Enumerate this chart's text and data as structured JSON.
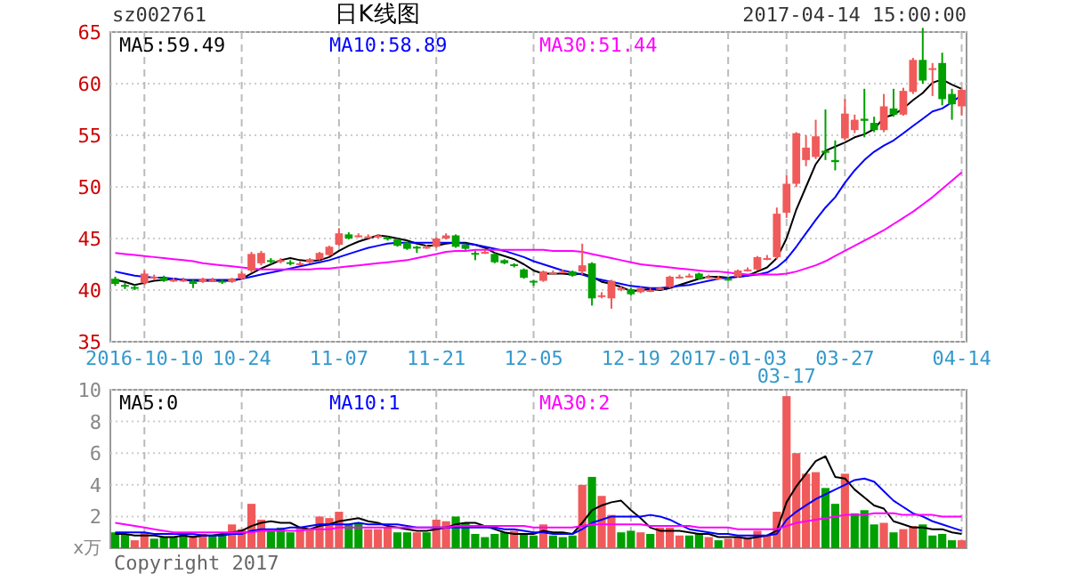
{
  "chart_data": [
    {
      "type": "candlestick",
      "title": "日K线图",
      "annotations": [
        "sz002761",
        "2017-04-14 15:00:00"
      ],
      "categories": [
        null,
        null,
        null,
        "2016-10-10",
        null,
        null,
        null,
        null,
        null,
        null,
        null,
        null,
        null,
        "10-24",
        null,
        null,
        null,
        null,
        null,
        null,
        null,
        null,
        null,
        "11-07",
        null,
        null,
        null,
        null,
        null,
        null,
        null,
        null,
        null,
        "11-21",
        null,
        null,
        null,
        null,
        null,
        null,
        null,
        null,
        null,
        "12-05",
        null,
        null,
        null,
        null,
        null,
        null,
        null,
        null,
        null,
        "12-19",
        null,
        null,
        null,
        null,
        null,
        null,
        null,
        null,
        null,
        "2017-01-03",
        null,
        null,
        null,
        null,
        null,
        "03-17",
        null,
        null,
        null,
        null,
        null,
        "03-27",
        null,
        null,
        null,
        null,
        null,
        null,
        null,
        null,
        null,
        null,
        null,
        "04-14"
      ],
      "ohlc": [
        [
          41.1,
          41.3,
          40.4,
          40.6
        ],
        [
          40.5,
          40.7,
          40.1,
          40.4
        ],
        [
          40.3,
          40.5,
          40.0,
          40.2
        ],
        [
          40.7,
          41.9,
          40.5,
          41.6
        ],
        [
          41.2,
          41.5,
          41.0,
          41.3
        ],
        [
          41.2,
          41.4,
          40.8,
          40.9
        ],
        [
          40.9,
          41.2,
          40.8,
          41.0
        ],
        [
          41.0,
          41.2,
          40.8,
          41.0
        ],
        [
          40.9,
          41.0,
          40.2,
          40.6
        ],
        [
          40.8,
          41.2,
          40.7,
          41.1
        ],
        [
          41.0,
          41.2,
          40.8,
          41.0
        ],
        [
          40.9,
          41.0,
          40.6,
          40.8
        ],
        [
          40.8,
          41.2,
          40.7,
          41.1
        ],
        [
          41.1,
          41.8,
          41.0,
          41.6
        ],
        [
          41.9,
          43.7,
          41.7,
          43.5
        ],
        [
          42.6,
          43.8,
          42.4,
          43.6
        ],
        [
          42.9,
          43.1,
          42.5,
          42.8
        ],
        [
          42.8,
          43.1,
          42.6,
          42.9
        ],
        [
          42.7,
          42.9,
          42.4,
          42.6
        ],
        [
          42.6,
          42.8,
          42.4,
          42.6
        ],
        [
          42.7,
          43.1,
          42.6,
          43.0
        ],
        [
          43.0,
          43.7,
          42.9,
          43.6
        ],
        [
          43.4,
          44.3,
          43.3,
          44.2
        ],
        [
          44.4,
          46.0,
          44.3,
          45.5
        ],
        [
          45.4,
          45.6,
          44.9,
          45.0
        ],
        [
          45.3,
          45.5,
          45.1,
          45.3
        ],
        [
          45.2,
          45.4,
          45.0,
          45.2
        ],
        [
          45.1,
          45.4,
          45.0,
          45.3
        ],
        [
          45.1,
          45.2,
          44.8,
          45.0
        ],
        [
          44.9,
          45.0,
          44.2,
          44.3
        ],
        [
          44.6,
          44.7,
          43.9,
          44.0
        ],
        [
          44.2,
          44.3,
          43.6,
          44.1
        ],
        [
          44.2,
          44.4,
          44.0,
          44.2
        ],
        [
          44.2,
          45.1,
          44.1,
          45.0
        ],
        [
          45.0,
          45.5,
          44.9,
          45.3
        ],
        [
          45.3,
          45.4,
          44.1,
          44.2
        ],
        [
          44.4,
          44.5,
          43.9,
          44.0
        ],
        [
          43.6,
          43.8,
          42.9,
          43.5
        ],
        [
          43.7,
          43.9,
          43.5,
          43.7
        ],
        [
          43.5,
          43.6,
          42.6,
          42.7
        ],
        [
          42.9,
          43.0,
          42.5,
          42.6
        ],
        [
          42.5,
          42.6,
          42.2,
          42.4
        ],
        [
          42.0,
          42.1,
          41.1,
          41.2
        ],
        [
          40.9,
          41.0,
          40.4,
          40.8
        ],
        [
          40.9,
          41.9,
          40.8,
          41.8
        ],
        [
          41.7,
          41.9,
          41.6,
          41.7
        ],
        [
          41.8,
          42.0,
          41.7,
          41.8
        ],
        [
          41.8,
          41.9,
          41.3,
          41.4
        ],
        [
          41.8,
          44.5,
          41.5,
          42.4
        ],
        [
          42.6,
          42.7,
          38.5,
          39.2
        ],
        [
          39.5,
          39.8,
          39.2,
          39.5
        ],
        [
          39.2,
          41.0,
          38.2,
          40.9
        ],
        [
          40.2,
          40.4,
          39.9,
          40.2
        ],
        [
          40.1,
          40.2,
          39.5,
          39.6
        ],
        [
          39.8,
          40.3,
          39.7,
          40.2
        ],
        [
          40.0,
          40.2,
          39.8,
          40.0
        ],
        [
          40.1,
          40.3,
          40.0,
          40.2
        ],
        [
          40.3,
          41.4,
          40.2,
          41.3
        ],
        [
          41.3,
          41.5,
          41.1,
          41.3
        ],
        [
          41.4,
          41.6,
          41.2,
          41.4
        ],
        [
          41.6,
          41.7,
          41.0,
          41.1
        ],
        [
          41.3,
          41.5,
          41.1,
          41.3
        ],
        [
          41.2,
          41.4,
          41.0,
          41.2
        ],
        [
          41.1,
          41.3,
          40.9,
          41.0
        ],
        [
          41.3,
          42.0,
          41.2,
          41.9
        ],
        [
          41.9,
          42.2,
          41.8,
          42.0
        ],
        [
          42.0,
          43.3,
          41.9,
          43.2
        ],
        [
          43.0,
          43.4,
          42.9,
          43.1
        ],
        [
          43.2,
          48.0,
          43.0,
          47.4
        ],
        [
          47.5,
          51.1,
          47.0,
          50.3
        ],
        [
          50.3,
          55.3,
          50.0,
          55.2
        ],
        [
          52.6,
          55.0,
          52.0,
          53.8
        ],
        [
          52.9,
          56.5,
          52.7,
          54.9
        ],
        [
          53.5,
          57.5,
          52.6,
          53.3
        ],
        [
          52.6,
          54.5,
          51.6,
          52.4
        ],
        [
          54.7,
          58.5,
          54.5,
          57.1
        ],
        [
          55.5,
          57.0,
          55.2,
          56.5
        ],
        [
          56.6,
          59.5,
          54.8,
          56.4
        ],
        [
          56.2,
          56.8,
          55.3,
          55.5
        ],
        [
          55.5,
          59.0,
          55.3,
          57.8
        ],
        [
          57.6,
          59.5,
          56.8,
          57.0
        ],
        [
          57.0,
          59.6,
          56.9,
          59.3
        ],
        [
          59.2,
          62.5,
          59.0,
          62.3
        ],
        [
          62.3,
          65.4,
          60.0,
          60.3
        ],
        [
          61.4,
          62.0,
          58.8,
          61.5
        ],
        [
          62.0,
          63.0,
          57.9,
          58.5
        ],
        [
          59.0,
          59.5,
          56.5,
          58.0
        ],
        [
          57.8,
          59.6,
          56.9,
          59.4
        ]
      ],
      "series": [
        {
          "type": "line",
          "name": "MA5:59.49",
          "color": "#000000",
          "values": [
            41.0,
            40.8,
            40.5,
            40.7,
            40.9,
            41.0,
            41.1,
            41.0,
            40.9,
            40.9,
            40.9,
            40.9,
            40.9,
            41.1,
            41.6,
            42.1,
            42.5,
            42.9,
            43.1,
            42.9,
            42.8,
            42.9,
            43.2,
            43.8,
            44.3,
            44.7,
            45.0,
            45.3,
            45.2,
            45.0,
            44.8,
            44.5,
            44.3,
            44.3,
            44.5,
            44.6,
            44.6,
            44.4,
            44.1,
            43.6,
            43.3,
            43.0,
            42.5,
            41.9,
            41.6,
            41.6,
            41.6,
            41.5,
            41.6,
            41.3,
            40.8,
            40.6,
            40.3,
            39.9,
            40.0,
            40.1,
            40.0,
            40.2,
            40.5,
            40.8,
            41.1,
            41.3,
            41.3,
            41.2,
            41.3,
            41.4,
            41.8,
            42.2,
            43.1,
            45.0,
            47.8,
            50.0,
            52.2,
            53.5,
            53.9,
            54.3,
            54.8,
            55.1,
            55.6,
            56.7,
            57.0,
            57.6,
            58.4,
            59.1,
            60.1,
            60.4,
            59.9,
            59.5
          ]
        },
        {
          "type": "line",
          "name": "MA10:58.89",
          "color": "#0000ff",
          "values": [
            41.8,
            41.6,
            41.4,
            41.3,
            41.2,
            41.2,
            41.1,
            41.0,
            41.0,
            41.0,
            41.0,
            41.0,
            41.0,
            41.1,
            41.3,
            41.5,
            41.7,
            41.9,
            42.1,
            42.3,
            42.5,
            42.7,
            42.9,
            43.2,
            43.5,
            43.8,
            44.1,
            44.3,
            44.5,
            44.6,
            44.6,
            44.6,
            44.6,
            44.6,
            44.6,
            44.6,
            44.5,
            44.4,
            44.2,
            44.0,
            43.8,
            43.5,
            43.2,
            42.8,
            42.5,
            42.2,
            41.9,
            41.7,
            41.5,
            41.2,
            41.0,
            40.8,
            40.6,
            40.4,
            40.3,
            40.2,
            40.2,
            40.3,
            40.4,
            40.5,
            40.7,
            40.9,
            41.1,
            41.2,
            41.3,
            41.4,
            41.5,
            41.7,
            42.2,
            43.0,
            44.2,
            45.5,
            46.8,
            48.0,
            49.0,
            50.4,
            51.6,
            52.6,
            53.4,
            54.0,
            54.5,
            55.2,
            55.9,
            56.6,
            57.3,
            57.6,
            58.2,
            58.9
          ]
        },
        {
          "type": "line",
          "name": "MA30:51.44",
          "color": "#ff00ff",
          "values": [
            43.6,
            43.5,
            43.4,
            43.3,
            43.2,
            43.1,
            43.0,
            42.9,
            42.8,
            42.6,
            42.5,
            42.4,
            42.3,
            42.2,
            42.1,
            42.0,
            42.0,
            42.0,
            42.0,
            42.0,
            42.0,
            42.1,
            42.1,
            42.2,
            42.3,
            42.4,
            42.5,
            42.6,
            42.7,
            42.8,
            42.9,
            43.1,
            43.3,
            43.5,
            43.7,
            43.8,
            43.8,
            43.9,
            43.9,
            43.9,
            43.9,
            43.9,
            43.9,
            43.9,
            43.9,
            43.8,
            43.8,
            43.8,
            43.7,
            43.5,
            43.3,
            43.1,
            42.9,
            42.7,
            42.5,
            42.4,
            42.3,
            42.2,
            42.1,
            42.0,
            41.9,
            41.8,
            41.8,
            41.7,
            41.6,
            41.5,
            41.5,
            41.5,
            41.5,
            41.6,
            41.8,
            42.1,
            42.4,
            42.8,
            43.3,
            43.8,
            44.3,
            44.8,
            45.3,
            45.8,
            46.4,
            47.0,
            47.6,
            48.3,
            49.0,
            49.8,
            50.6,
            51.4
          ]
        }
      ],
      "ylim": [
        35,
        65
      ],
      "yticks": [
        35,
        40,
        45,
        50,
        55,
        60,
        65
      ],
      "grid": true,
      "legend": "top left"
    },
    {
      "type": "bar",
      "ylabel": "x万",
      "annotations": [
        "Copyright 2017"
      ],
      "categories": [
        null,
        null,
        null,
        null,
        null,
        null,
        null,
        null,
        null,
        null,
        null,
        null,
        null,
        null,
        null,
        null,
        null,
        null,
        null,
        null,
        null,
        null,
        null,
        null,
        null,
        null,
        null,
        null,
        null,
        null,
        null,
        null,
        null,
        null,
        null,
        null,
        null,
        null,
        null,
        null,
        null,
        null,
        null,
        null,
        null,
        null,
        null,
        null,
        null,
        null,
        null,
        null,
        null,
        null,
        null,
        null,
        null,
        null,
        null,
        null,
        null,
        null,
        null,
        null,
        null,
        null,
        null,
        null,
        null,
        null,
        null,
        null,
        null,
        null,
        null,
        null,
        null,
        null,
        null,
        null,
        null,
        null,
        null,
        null,
        null,
        null,
        null,
        null
      ],
      "series": [
        {
          "type": "bar",
          "values": [
            1.0,
            0.9,
            0.5,
            1.0,
            0.6,
            0.7,
            0.7,
            0.9,
            0.8,
            0.9,
            0.8,
            0.9,
            1.5,
            1.2,
            2.8,
            1.8,
            1.1,
            1.3,
            1.0,
            1.3,
            1.2,
            2.0,
            1.9,
            2.3,
            1.5,
            1.6,
            1.2,
            1.2,
            1.3,
            1.0,
            1.0,
            1.0,
            1.0,
            1.8,
            1.7,
            2.0,
            1.6,
            0.9,
            0.7,
            0.9,
            1.0,
            1.1,
            0.9,
            0.8,
            1.5,
            0.8,
            0.7,
            0.8,
            4.0,
            4.5,
            3.3,
            2.1,
            1.0,
            1.1,
            1.0,
            0.9,
            1.3,
            1.3,
            0.8,
            0.8,
            0.9,
            0.7,
            0.5,
            0.6,
            0.7,
            0.7,
            1.1,
            0.8,
            2.3,
            9.6,
            6.0,
            4.7,
            4.8,
            3.8,
            2.8,
            4.7,
            2.2,
            2.4,
            1.5,
            1.6,
            1.0,
            1.2,
            1.4,
            1.5,
            0.8,
            0.9,
            0.5,
            0.5
          ],
          "colors": [
            "#00a000",
            "#00a000",
            "#f05a5a",
            "#f05a5a",
            "#00a000",
            "#00a000",
            "#00a000",
            "#00a000",
            "#f05a5a",
            "#f05a5a",
            "#00a000",
            "#00a000",
            "#f05a5a",
            "#f05a5a",
            "#f05a5a",
            "#f05a5a",
            "#00a000",
            "#00a000",
            "#00a000",
            "#f05a5a",
            "#f05a5a",
            "#f05a5a",
            "#f05a5a",
            "#f05a5a",
            "#00a000",
            "#00a000",
            "#f05a5a",
            "#f05a5a",
            "#f05a5a",
            "#00a000",
            "#00a000",
            "#f05a5a",
            "#00a000",
            "#f05a5a",
            "#f05a5a",
            "#00a000",
            "#00a000",
            "#00a000",
            "#00a000",
            "#00a000",
            "#00a000",
            "#f05a5a",
            "#00a000",
            "#00a000",
            "#f05a5a",
            "#00a000",
            "#00a000",
            "#00a000",
            "#f05a5a",
            "#00a000",
            "#f05a5a",
            "#f05a5a",
            "#00a000",
            "#00a000",
            "#f05a5a",
            "#00a000",
            "#f05a5a",
            "#f05a5a",
            "#f05a5a",
            "#00a000",
            "#00a000",
            "#f05a5a",
            "#00a000",
            "#f05a5a",
            "#f05a5a",
            "#f05a5a",
            "#f05a5a",
            "#f05a5a",
            "#f05a5a",
            "#f05a5a",
            "#f05a5a",
            "#f05a5a",
            "#f05a5a",
            "#00a000",
            "#00a000",
            "#f05a5a",
            "#00a000",
            "#00a000",
            "#00a000",
            "#f05a5a",
            "#00a000",
            "#f05a5a",
            "#f05a5a",
            "#00a000",
            "#00a000",
            "#00a000",
            "#00a000",
            "#f05a5a"
          ]
        },
        {
          "type": "line",
          "name": "MA5:0",
          "color": "#000000",
          "values": [
            0.9,
            0.9,
            0.8,
            0.8,
            0.8,
            0.7,
            0.7,
            0.8,
            0.7,
            0.8,
            0.8,
            0.9,
            1.0,
            1.1,
            1.4,
            1.6,
            1.7,
            1.6,
            1.6,
            1.3,
            1.2,
            1.4,
            1.5,
            1.7,
            1.8,
            1.9,
            1.7,
            1.6,
            1.4,
            1.3,
            1.2,
            1.1,
            1.1,
            1.2,
            1.3,
            1.5,
            1.6,
            1.6,
            1.4,
            1.2,
            1.0,
            0.9,
            0.9,
            0.9,
            1.1,
            1.0,
            1.0,
            0.9,
            1.6,
            2.4,
            2.7,
            2.9,
            3.0,
            2.4,
            1.9,
            1.3,
            1.1,
            1.1,
            1.1,
            1.0,
            0.9,
            0.9,
            0.7,
            0.7,
            0.7,
            0.6,
            0.7,
            0.8,
            1.1,
            2.9,
            3.9,
            4.7,
            5.5,
            5.8,
            4.5,
            4.4,
            3.7,
            3.2,
            2.7,
            2.5,
            1.7,
            1.5,
            1.3,
            1.3,
            1.2,
            1.2,
            1.0,
            0.9
          ]
        },
        {
          "type": "line",
          "name": "MA10:1",
          "color": "#0000ff",
          "values": [
            1.0,
            1.0,
            1.0,
            1.0,
            0.9,
            0.9,
            0.9,
            0.9,
            0.9,
            0.8,
            0.8,
            0.8,
            0.9,
            0.9,
            1.1,
            1.2,
            1.2,
            1.2,
            1.3,
            1.3,
            1.4,
            1.5,
            1.5,
            1.5,
            1.5,
            1.6,
            1.5,
            1.5,
            1.5,
            1.5,
            1.4,
            1.3,
            1.3,
            1.3,
            1.3,
            1.3,
            1.3,
            1.3,
            1.3,
            1.3,
            1.2,
            1.2,
            1.1,
            1.0,
            1.0,
            0.9,
            0.9,
            0.9,
            1.2,
            1.6,
            1.8,
            2.0,
            2.0,
            2.0,
            2.0,
            2.1,
            2.0,
            1.8,
            1.5,
            1.2,
            1.1,
            1.0,
            0.9,
            0.9,
            0.8,
            0.8,
            0.8,
            0.8,
            0.9,
            1.8,
            2.3,
            2.7,
            3.1,
            3.4,
            3.7,
            4.0,
            4.3,
            4.4,
            4.2,
            3.6,
            3.0,
            2.6,
            2.2,
            2.0,
            1.7,
            1.5,
            1.3,
            1.1
          ]
        },
        {
          "type": "line",
          "name": "MA30:2",
          "color": "#ff00ff",
          "values": [
            1.6,
            1.5,
            1.4,
            1.3,
            1.2,
            1.1,
            1.0,
            1.0,
            1.0,
            1.0,
            1.0,
            1.0,
            1.0,
            1.0,
            1.0,
            1.1,
            1.1,
            1.1,
            1.1,
            1.1,
            1.2,
            1.2,
            1.2,
            1.3,
            1.3,
            1.3,
            1.3,
            1.3,
            1.3,
            1.3,
            1.3,
            1.3,
            1.3,
            1.3,
            1.3,
            1.4,
            1.4,
            1.4,
            1.4,
            1.4,
            1.4,
            1.4,
            1.4,
            1.3,
            1.3,
            1.3,
            1.3,
            1.3,
            1.4,
            1.5,
            1.5,
            1.5,
            1.5,
            1.5,
            1.5,
            1.4,
            1.4,
            1.4,
            1.4,
            1.4,
            1.3,
            1.3,
            1.3,
            1.3,
            1.2,
            1.2,
            1.2,
            1.2,
            1.2,
            1.4,
            1.6,
            1.7,
            1.8,
            1.9,
            2.0,
            2.1,
            2.1,
            2.1,
            2.2,
            2.2,
            2.2,
            2.1,
            2.1,
            2.1,
            2.1,
            2.0,
            2.0,
            2.0
          ]
        }
      ],
      "ylim": [
        0,
        10
      ],
      "yticks": [
        2,
        4,
        6,
        8,
        10
      ],
      "grid": true,
      "legend": "top left"
    }
  ]
}
